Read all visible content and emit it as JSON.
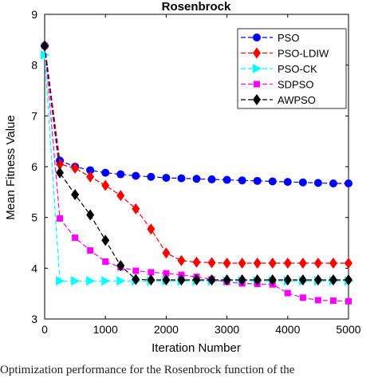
{
  "chart_data": {
    "type": "line",
    "title": "Rosenbrock",
    "xlabel": "Iteration Number",
    "ylabel": "Mean Fitness Value",
    "xlim": [
      0,
      5000
    ],
    "ylim": [
      3,
      9
    ],
    "xticks": [
      0,
      1000,
      2000,
      3000,
      4000,
      5000
    ],
    "yticks": [
      3,
      4,
      5,
      6,
      7,
      8,
      9
    ],
    "grid": false,
    "legend_position": "top-right",
    "series": [
      {
        "name": "PSO",
        "color": "#0000ff",
        "marker": "circle",
        "x": [
          0,
          250,
          500,
          750,
          1000,
          1250,
          1500,
          1750,
          2000,
          2250,
          2500,
          2750,
          3000,
          3250,
          3500,
          3750,
          4000,
          4250,
          4500,
          4750,
          5000
        ],
        "y": [
          8.38,
          6.12,
          6.0,
          5.93,
          5.88,
          5.85,
          5.82,
          5.8,
          5.78,
          5.77,
          5.76,
          5.75,
          5.74,
          5.73,
          5.72,
          5.71,
          5.7,
          5.69,
          5.68,
          5.67,
          5.67
        ]
      },
      {
        "name": "PSO-LDIW",
        "color": "#ff0000",
        "marker": "diamond",
        "x": [
          0,
          250,
          500,
          750,
          1000,
          1250,
          1500,
          1750,
          2000,
          2250,
          2500,
          2750,
          3000,
          3250,
          3500,
          3750,
          4000,
          4250,
          4500,
          4750,
          5000
        ],
        "y": [
          8.38,
          6.05,
          5.97,
          5.8,
          5.63,
          5.43,
          5.17,
          4.77,
          4.3,
          4.15,
          4.12,
          4.11,
          4.1,
          4.1,
          4.1,
          4.1,
          4.1,
          4.1,
          4.1,
          4.1,
          4.1
        ]
      },
      {
        "name": "PSO-CK",
        "color": "#00ffff",
        "marker": "triangle-right",
        "x": [
          0,
          250,
          500,
          750,
          1000,
          1250,
          1500,
          1750,
          2000,
          2250,
          2500,
          2750,
          3000,
          3250,
          3500,
          3750,
          4000,
          4250,
          4500,
          4750,
          5000
        ],
        "y": [
          8.2,
          3.75,
          3.75,
          3.75,
          3.75,
          3.75,
          3.75,
          3.75,
          3.75,
          3.75,
          3.75,
          3.75,
          3.75,
          3.75,
          3.75,
          3.75,
          3.75,
          3.75,
          3.75,
          3.75,
          3.75
        ]
      },
      {
        "name": "SDPSO",
        "color": "#ff00ff",
        "marker": "square",
        "x": [
          0,
          250,
          500,
          750,
          1000,
          1250,
          1500,
          1750,
          2000,
          2250,
          2500,
          2750,
          3000,
          3250,
          3500,
          3750,
          4000,
          4250,
          4500,
          4750,
          5000
        ],
        "y": [
          8.38,
          4.98,
          4.6,
          4.35,
          4.13,
          4.02,
          3.95,
          3.92,
          3.9,
          3.87,
          3.83,
          3.78,
          3.73,
          3.7,
          3.69,
          3.68,
          3.51,
          3.42,
          3.37,
          3.36,
          3.35
        ]
      },
      {
        "name": "AWPSO",
        "color": "#000000",
        "marker": "diamond",
        "x": [
          0,
          250,
          500,
          750,
          1000,
          1250,
          1500,
          1750,
          2000,
          2250,
          2500,
          2750,
          3000,
          3250,
          3500,
          3750,
          4000,
          4250,
          4500,
          4750,
          5000
        ],
        "y": [
          8.38,
          5.88,
          5.45,
          5.05,
          4.55,
          4.05,
          3.78,
          3.77,
          3.77,
          3.77,
          3.77,
          3.77,
          3.77,
          3.77,
          3.77,
          3.77,
          3.77,
          3.77,
          3.77,
          3.77,
          3.77
        ]
      }
    ]
  },
  "caption": "Optimization performance for the Rosenbrock function of the"
}
